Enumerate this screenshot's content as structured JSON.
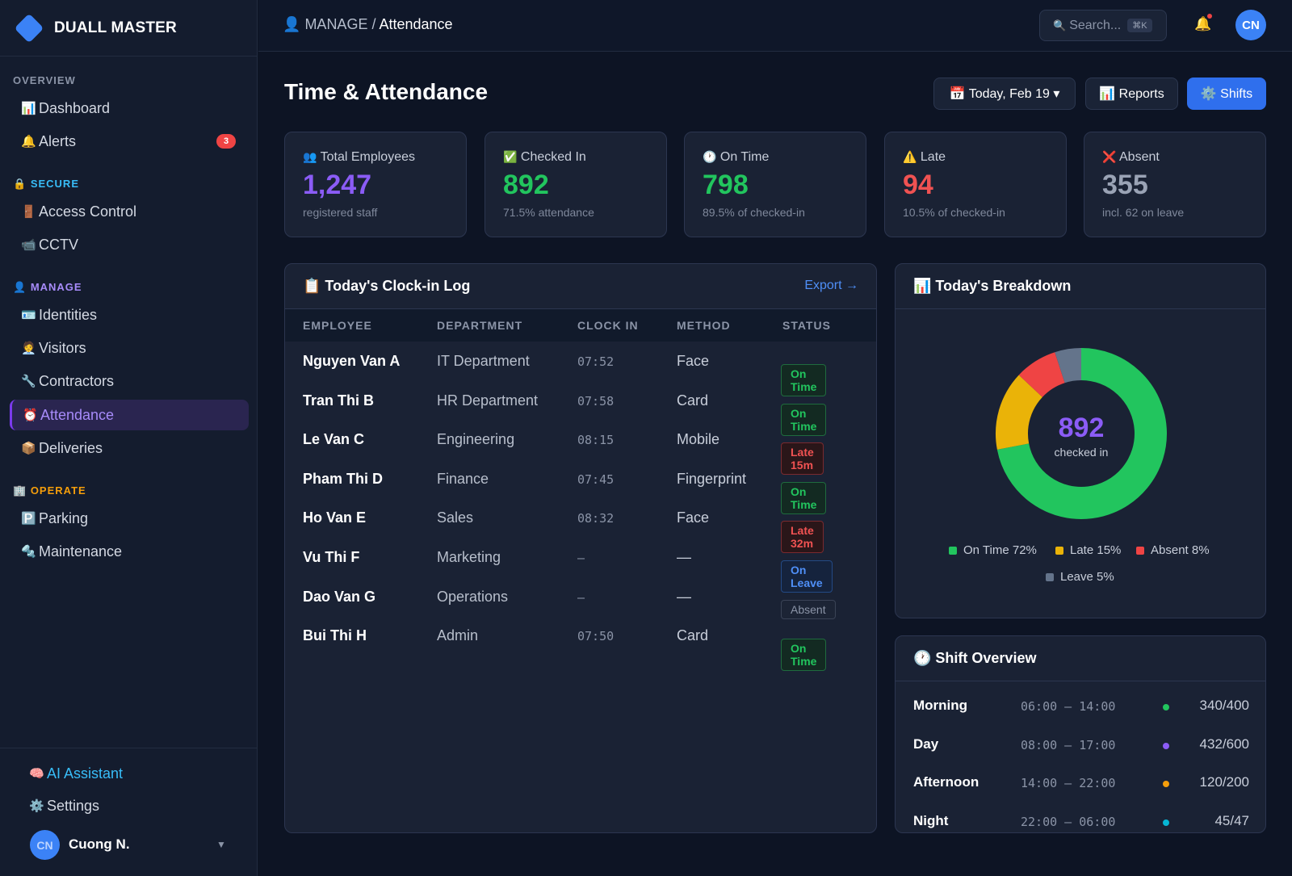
{
  "brand": {
    "name": "DUALL MASTER"
  },
  "sidebar": {
    "sections": [
      {
        "label": "OVERVIEW",
        "icon": "",
        "color": "#8b94a7"
      },
      {
        "label": "SECURE",
        "icon": "🔒",
        "color": "#38bdf8"
      },
      {
        "label": "MANAGE",
        "icon": "👤",
        "color": "#a78bfa"
      },
      {
        "label": "OPERATE",
        "icon": "🏢",
        "color": "#f59e0b"
      }
    ],
    "items": [
      {
        "label": "Dashboard",
        "icon": "📊"
      },
      {
        "label": "Alerts",
        "icon": "🔔",
        "badge": "3"
      },
      {
        "label": "Access Control",
        "icon": "🚪"
      },
      {
        "label": "CCTV",
        "icon": "📹"
      },
      {
        "label": "Identities",
        "icon": "🪪"
      },
      {
        "label": "Visitors",
        "icon": "🧑‍💼"
      },
      {
        "label": "Contractors",
        "icon": "🔧"
      },
      {
        "label": "Attendance",
        "icon": "⏰"
      },
      {
        "label": "Deliveries",
        "icon": "📦"
      },
      {
        "label": "Parking",
        "icon": "🅿️"
      },
      {
        "label": "Maintenance",
        "icon": "🔩"
      }
    ],
    "footer": {
      "ai_label": "AI Assistant",
      "ai_icon": "🧠",
      "settings_label": "Settings",
      "settings_icon": "⚙️",
      "user_initials": "CN",
      "user_name": "Cuong N."
    }
  },
  "topbar": {
    "breadcrumb_icon": "👤",
    "breadcrumb_parent": "MANAGE",
    "breadcrumb_sep": "/",
    "breadcrumb_current": "Attendance",
    "search_placeholder": "Search...",
    "search_icon": "🔍",
    "search_shortcut": "⌘K",
    "bell_icon": "🔔",
    "avatar_initials": "CN"
  },
  "page": {
    "title": "Time & Attendance",
    "date_button": "📅 Today, Feb 19 ▾",
    "reports_button": "📊 Reports",
    "shifts_button": "⚙️ Shifts"
  },
  "stats": [
    {
      "icon": "👥",
      "label": "Total Employees",
      "value": "1,247",
      "sub": "registered staff",
      "color": "#8b5cf6"
    },
    {
      "icon": "✅",
      "label": "Checked In",
      "value": "892",
      "sub": "71.5% attendance",
      "color": "#22c55e"
    },
    {
      "icon": "🕐",
      "label": "On Time",
      "value": "798",
      "sub": "89.5% of checked-in",
      "color": "#22c55e"
    },
    {
      "icon": "⚠️",
      "label": "Late",
      "value": "94",
      "sub": "10.5% of checked-in",
      "color": "#f05252"
    },
    {
      "icon": "❌",
      "label": "Absent",
      "value": "355",
      "sub": "incl. 62 on leave",
      "color": "#9aa3b5"
    }
  ],
  "log": {
    "title": "📋 Today's Clock-in Log",
    "export_label": "Export →",
    "columns": [
      "EMPLOYEE",
      "DEPARTMENT",
      "CLOCK IN",
      "METHOD",
      "STATUS"
    ],
    "rows": [
      {
        "employee": "Nguyen Van A",
        "department": "IT Department",
        "clock_in": "07:52",
        "method": "Face",
        "status": "On Time",
        "kind": "ontime"
      },
      {
        "employee": "Tran Thi B",
        "department": "HR Department",
        "clock_in": "07:58",
        "method": "Card",
        "status": "On Time",
        "kind": "ontime"
      },
      {
        "employee": "Le Van C",
        "department": "Engineering",
        "clock_in": "08:15",
        "method": "Mobile",
        "status": "Late 15m",
        "kind": "late"
      },
      {
        "employee": "Pham Thi D",
        "department": "Finance",
        "clock_in": "07:45",
        "method": "Fingerprint",
        "status": "On Time",
        "kind": "ontime"
      },
      {
        "employee": "Ho Van E",
        "department": "Sales",
        "clock_in": "08:32",
        "method": "Face",
        "status": "Late 32m",
        "kind": "late"
      },
      {
        "employee": "Vu Thi F",
        "department": "Marketing",
        "clock_in": "–",
        "method": "—",
        "status": "On Leave",
        "kind": "leave"
      },
      {
        "employee": "Dao Van G",
        "department": "Operations",
        "clock_in": "–",
        "method": "—",
        "status": "Absent",
        "kind": "absent"
      },
      {
        "employee": "Bui Thi H",
        "department": "Admin",
        "clock_in": "07:50",
        "method": "Card",
        "status": "On Time",
        "kind": "ontime"
      }
    ]
  },
  "breakdown": {
    "title": "📊 Today's Breakdown",
    "center_value": "892",
    "center_label": "checked in",
    "chart_data": {
      "type": "pie",
      "categories": [
        "On Time",
        "Late",
        "Absent",
        "Leave"
      ],
      "values": [
        72,
        15,
        8,
        5
      ],
      "colors": [
        "#22c55e",
        "#eab308",
        "#ef4444",
        "#64748b"
      ]
    },
    "legend": [
      "On Time 72%",
      "Late 15%",
      "Absent 8%",
      "Leave 5%"
    ]
  },
  "shifts": {
    "title": "🕐 Shift Overview",
    "rows": [
      {
        "name": "Morning",
        "time": "06:00 — 14:00",
        "count": "340/400",
        "color": "#22c55e"
      },
      {
        "name": "Day",
        "time": "08:00 — 17:00",
        "count": "432/600",
        "color": "#8b5cf6"
      },
      {
        "name": "Afternoon",
        "time": "14:00 — 22:00",
        "count": "120/200",
        "color": "#f59e0b"
      },
      {
        "name": "Night",
        "time": "22:00 — 06:00",
        "count": "45/47",
        "color": "#06b6d4"
      }
    ]
  }
}
